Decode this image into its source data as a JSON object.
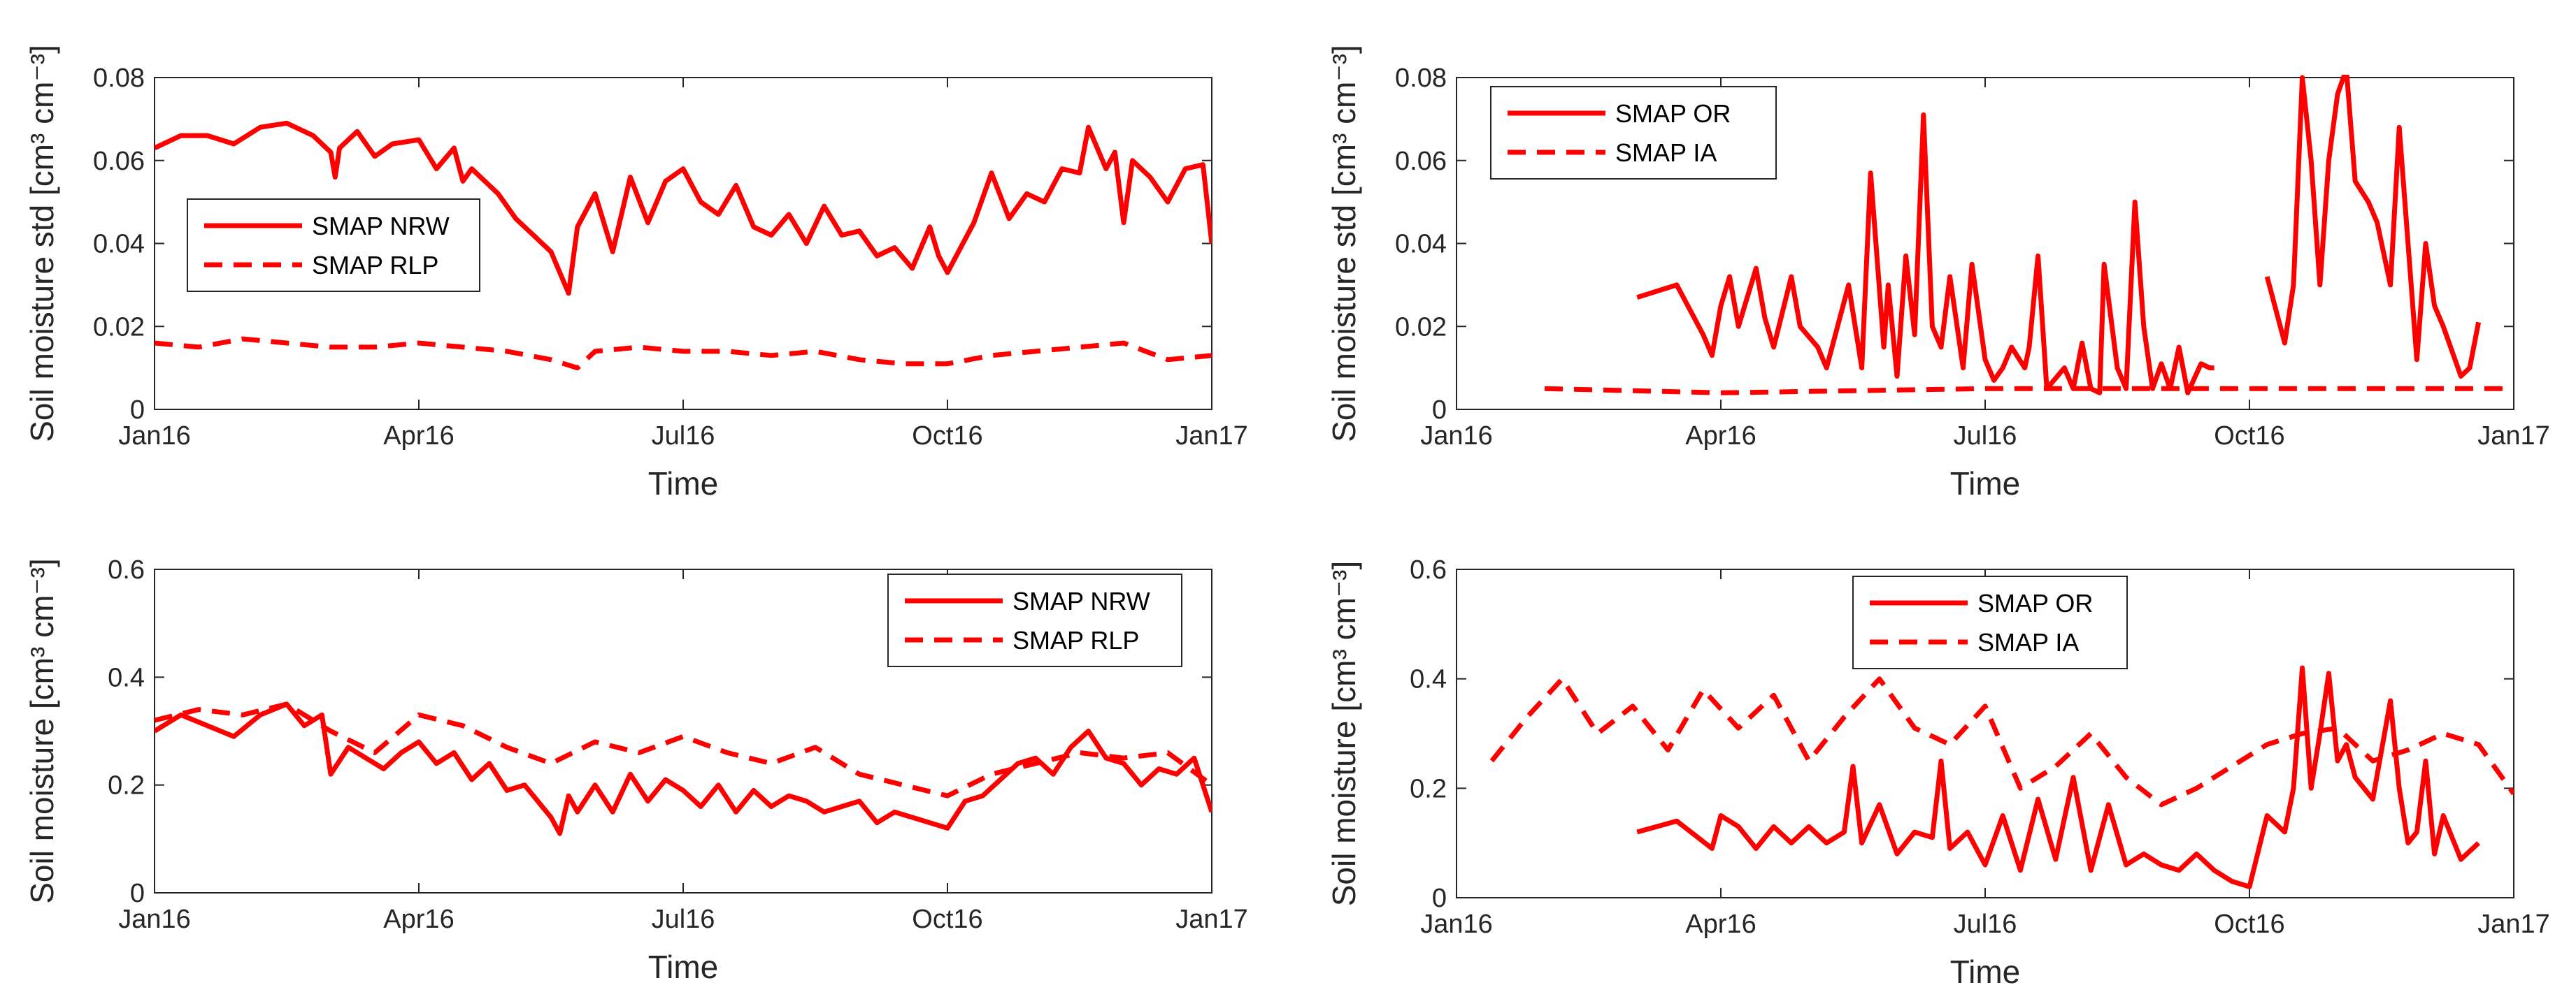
{
  "series_color": "#ff0000",
  "chart_data": [
    {
      "type": "line",
      "xlabel": "Time",
      "ylabel": "Soil moisture std [cm³ cm⁻³]",
      "xlim": [
        0,
        12
      ],
      "ylim": [
        0,
        0.08
      ],
      "xticks": [
        {
          "pos": 0,
          "label": "Jan16"
        },
        {
          "pos": 3,
          "label": "Apr16"
        },
        {
          "pos": 6,
          "label": "Jul16"
        },
        {
          "pos": 9,
          "label": "Oct16"
        },
        {
          "pos": 12,
          "label": "Jan17"
        }
      ],
      "yticks": [
        {
          "pos": 0,
          "label": "0"
        },
        {
          "pos": 0.02,
          "label": "0.02"
        },
        {
          "pos": 0.04,
          "label": "0.04"
        },
        {
          "pos": 0.06,
          "label": "0.06"
        },
        {
          "pos": 0.08,
          "label": "0.08"
        }
      ],
      "legend": {
        "position": "middle-left",
        "entries": [
          "SMAP NRW",
          "SMAP RLP"
        ]
      },
      "series": [
        {
          "name": "SMAP NRW",
          "style": "solid",
          "x": [
            0,
            0.3,
            0.6,
            0.9,
            1.2,
            1.5,
            1.8,
            2.0,
            2.05,
            2.1,
            2.3,
            2.5,
            2.7,
            3.0,
            3.2,
            3.4,
            3.5,
            3.6,
            3.9,
            4.1,
            4.3,
            4.5,
            4.6,
            4.7,
            4.8,
            5.0,
            5.2,
            5.4,
            5.6,
            5.8,
            6.0,
            6.2,
            6.4,
            6.6,
            6.8,
            7.0,
            7.2,
            7.4,
            7.6,
            7.8,
            8.0,
            8.2,
            8.4,
            8.6,
            8.8,
            8.9,
            9.0,
            9.1,
            9.3,
            9.5,
            9.7,
            9.9,
            10.1,
            10.3,
            10.5,
            10.6,
            10.8,
            10.9,
            11.0,
            11.1,
            11.3,
            11.5,
            11.7,
            11.9,
            12.0
          ],
          "y": [
            0.063,
            0.066,
            0.066,
            0.064,
            0.068,
            0.069,
            0.066,
            0.062,
            0.056,
            0.063,
            0.067,
            0.061,
            0.064,
            0.065,
            0.058,
            0.063,
            0.055,
            0.058,
            0.052,
            0.046,
            0.042,
            0.038,
            0.033,
            0.028,
            0.044,
            0.052,
            0.038,
            0.056,
            0.045,
            0.055,
            0.058,
            0.05,
            0.047,
            0.054,
            0.044,
            0.042,
            0.047,
            0.04,
            0.049,
            0.042,
            0.043,
            0.037,
            0.039,
            0.034,
            0.044,
            0.037,
            0.033,
            0.037,
            0.045,
            0.057,
            0.046,
            0.052,
            0.05,
            0.058,
            0.057,
            0.068,
            0.058,
            0.062,
            0.045,
            0.06,
            0.056,
            0.05,
            0.058,
            0.059,
            0.04
          ]
        },
        {
          "name": "SMAP RLP",
          "style": "dashed",
          "x": [
            0,
            0.5,
            1.0,
            1.5,
            2.0,
            2.5,
            3.0,
            3.5,
            4.0,
            4.5,
            4.8,
            5.0,
            5.5,
            6.0,
            6.5,
            7.0,
            7.5,
            8.0,
            8.5,
            9.0,
            9.5,
            10.0,
            10.5,
            11.0,
            11.5,
            12.0
          ],
          "y": [
            0.016,
            0.015,
            0.017,
            0.016,
            0.015,
            0.015,
            0.016,
            0.015,
            0.014,
            0.012,
            0.01,
            0.014,
            0.015,
            0.014,
            0.014,
            0.013,
            0.014,
            0.012,
            0.011,
            0.011,
            0.013,
            0.014,
            0.015,
            0.016,
            0.012,
            0.013
          ]
        }
      ]
    },
    {
      "type": "line",
      "xlabel": "Time",
      "ylabel": "Soil moisture std [cm³ cm⁻³]",
      "xlim": [
        0,
        12
      ],
      "ylim": [
        0,
        0.08
      ],
      "xticks": [
        {
          "pos": 0,
          "label": "Jan16"
        },
        {
          "pos": 3,
          "label": "Apr16"
        },
        {
          "pos": 6,
          "label": "Jul16"
        },
        {
          "pos": 9,
          "label": "Oct16"
        },
        {
          "pos": 12,
          "label": "Jan17"
        }
      ],
      "yticks": [
        {
          "pos": 0,
          "label": "0"
        },
        {
          "pos": 0.02,
          "label": "0.02"
        },
        {
          "pos": 0.04,
          "label": "0.04"
        },
        {
          "pos": 0.06,
          "label": "0.06"
        },
        {
          "pos": 0.08,
          "label": "0.08"
        }
      ],
      "legend": {
        "position": "top-left",
        "entries": [
          "SMAP OR",
          "SMAP IA"
        ]
      },
      "series": [
        {
          "name": "SMAP OR",
          "style": "solid",
          "x": [
            2.05,
            2.5,
            2.8,
            2.9,
            3.0,
            3.1,
            3.2,
            3.4,
            3.5,
            3.6,
            3.8,
            3.9,
            4.1,
            4.2,
            4.35,
            4.45,
            4.6,
            4.7,
            4.85,
            4.9,
            5.0,
            5.1,
            5.2,
            5.3,
            5.4,
            5.5,
            5.6,
            5.75,
            5.85,
            6.0,
            6.1,
            6.2,
            6.3,
            6.45,
            6.5,
            6.6,
            6.7,
            6.9,
            7.0,
            7.1,
            7.2,
            7.3,
            7.35,
            7.5,
            7.6,
            7.7,
            7.8,
            7.9,
            8.0,
            8.1,
            8.2,
            8.3,
            8.45,
            8.55,
            8.6
          ],
          "y": [
            0.027,
            0.03,
            0.018,
            0.013,
            0.025,
            0.032,
            0.02,
            0.034,
            0.022,
            0.015,
            0.032,
            0.02,
            0.015,
            0.01,
            0.022,
            0.03,
            0.01,
            0.057,
            0.015,
            0.03,
            0.008,
            0.037,
            0.018,
            0.071,
            0.02,
            0.015,
            0.032,
            0.01,
            0.035,
            0.012,
            0.007,
            0.01,
            0.015,
            0.01,
            0.015,
            0.037,
            0.005,
            0.01,
            0.005,
            0.016,
            0.005,
            0.004,
            0.035,
            0.01,
            0.005,
            0.05,
            0.02,
            0.005,
            0.011,
            0.005,
            0.015,
            0.004,
            0.011,
            0.01,
            0.01
          ]
        },
        {
          "name": "SMAP OR",
          "style": "solid",
          "x": [
            9.2,
            9.4,
            9.5,
            9.6,
            9.7,
            9.8,
            9.9,
            10.0,
            10.1,
            10.2,
            10.35,
            10.45,
            10.6,
            10.7,
            10.8,
            10.9,
            11.0,
            11.1,
            11.2,
            11.4,
            11.5,
            11.6
          ],
          "y": [
            0.032,
            0.016,
            0.03,
            0.08,
            0.06,
            0.03,
            0.06,
            0.076,
            0.082,
            0.055,
            0.05,
            0.045,
            0.03,
            0.068,
            0.04,
            0.012,
            0.04,
            0.025,
            0.02,
            0.008,
            0.01,
            0.021
          ]
        },
        {
          "name": "SMAP IA",
          "style": "dashed",
          "x": [
            1.0,
            3.0,
            6.0,
            9.0,
            11.0,
            12.0
          ],
          "y": [
            0.005,
            0.004,
            0.005,
            0.005,
            0.005,
            0.005
          ]
        }
      ]
    },
    {
      "type": "line",
      "xlabel": "Time",
      "ylabel": "Soil moisture [cm³ cm⁻³]",
      "xlim": [
        0,
        12
      ],
      "ylim": [
        0,
        0.6
      ],
      "xticks": [
        {
          "pos": 0,
          "label": "Jan16"
        },
        {
          "pos": 3,
          "label": "Apr16"
        },
        {
          "pos": 6,
          "label": "Jul16"
        },
        {
          "pos": 9,
          "label": "Oct16"
        },
        {
          "pos": 12,
          "label": "Jan17"
        }
      ],
      "yticks": [
        {
          "pos": 0,
          "label": "0"
        },
        {
          "pos": 0.2,
          "label": "0.2"
        },
        {
          "pos": 0.4,
          "label": "0.4"
        },
        {
          "pos": 0.6,
          "label": "0.6"
        }
      ],
      "legend": {
        "position": "top-right",
        "entries": [
          "SMAP NRW",
          "SMAP RLP"
        ]
      },
      "series": [
        {
          "name": "SMAP NRW",
          "style": "solid",
          "x": [
            0,
            0.3,
            0.6,
            0.9,
            1.2,
            1.5,
            1.7,
            1.9,
            2.0,
            2.2,
            2.4,
            2.6,
            2.8,
            3.0,
            3.2,
            3.4,
            3.6,
            3.8,
            4.0,
            4.2,
            4.4,
            4.5,
            4.6,
            4.7,
            4.8,
            5.0,
            5.2,
            5.4,
            5.6,
            5.8,
            6.0,
            6.2,
            6.4,
            6.6,
            6.8,
            7.0,
            7.2,
            7.4,
            7.6,
            7.8,
            8.0,
            8.2,
            8.4,
            8.6,
            8.8,
            9.0,
            9.2,
            9.4,
            9.6,
            9.8,
            10.0,
            10.2,
            10.4,
            10.6,
            10.8,
            11.0,
            11.2,
            11.4,
            11.6,
            11.8,
            12.0
          ],
          "y": [
            0.3,
            0.33,
            0.31,
            0.29,
            0.33,
            0.35,
            0.31,
            0.33,
            0.22,
            0.27,
            0.25,
            0.23,
            0.26,
            0.28,
            0.24,
            0.26,
            0.21,
            0.24,
            0.19,
            0.2,
            0.16,
            0.14,
            0.11,
            0.18,
            0.15,
            0.2,
            0.15,
            0.22,
            0.17,
            0.21,
            0.19,
            0.16,
            0.2,
            0.15,
            0.19,
            0.16,
            0.18,
            0.17,
            0.15,
            0.16,
            0.17,
            0.13,
            0.15,
            0.14,
            0.13,
            0.12,
            0.17,
            0.18,
            0.21,
            0.24,
            0.25,
            0.22,
            0.27,
            0.3,
            0.25,
            0.24,
            0.2,
            0.23,
            0.22,
            0.25,
            0.15
          ]
        },
        {
          "name": "SMAP RLP",
          "style": "dashed",
          "x": [
            0,
            0.5,
            1.0,
            1.5,
            2.0,
            2.5,
            3.0,
            3.5,
            4.0,
            4.5,
            5.0,
            5.5,
            6.0,
            6.5,
            7.0,
            7.5,
            8.0,
            8.5,
            9.0,
            9.5,
            10.0,
            10.5,
            11.0,
            11.5,
            12.0
          ],
          "y": [
            0.32,
            0.34,
            0.33,
            0.35,
            0.3,
            0.26,
            0.33,
            0.31,
            0.27,
            0.24,
            0.28,
            0.26,
            0.29,
            0.26,
            0.24,
            0.27,
            0.22,
            0.2,
            0.18,
            0.22,
            0.24,
            0.26,
            0.25,
            0.26,
            0.2
          ]
        }
      ]
    },
    {
      "type": "line",
      "xlabel": "Time",
      "ylabel": "Soil moisture [cm³ cm⁻³]",
      "xlim": [
        0,
        12
      ],
      "ylim": [
        0,
        0.6
      ],
      "xticks": [
        {
          "pos": 0,
          "label": "Jan16"
        },
        {
          "pos": 3,
          "label": "Apr16"
        },
        {
          "pos": 6,
          "label": "Jul16"
        },
        {
          "pos": 9,
          "label": "Oct16"
        },
        {
          "pos": 12,
          "label": "Jan17"
        }
      ],
      "yticks": [
        {
          "pos": 0,
          "label": "0"
        },
        {
          "pos": 0.2,
          "label": "0.2"
        },
        {
          "pos": 0.4,
          "label": "0.4"
        },
        {
          "pos": 0.6,
          "label": "0.6"
        }
      ],
      "legend": {
        "position": "top-center",
        "entries": [
          "SMAP OR",
          "SMAP IA"
        ]
      },
      "series": [
        {
          "name": "SMAP OR",
          "style": "solid",
          "x": [
            2.05,
            2.5,
            2.9,
            3.0,
            3.2,
            3.4,
            3.6,
            3.8,
            4.0,
            4.2,
            4.4,
            4.5,
            4.6,
            4.8,
            5.0,
            5.2,
            5.4,
            5.5,
            5.6,
            5.8,
            6.0,
            6.2,
            6.4,
            6.6,
            6.8,
            7.0,
            7.2,
            7.4,
            7.6,
            7.8,
            8.0,
            8.2,
            8.4,
            8.6,
            8.8,
            9.0,
            9.2,
            9.4,
            9.5,
            9.6,
            9.7,
            9.8,
            9.9,
            10.0,
            10.1,
            10.2,
            10.4,
            10.6,
            10.7,
            10.8,
            10.9,
            11.0,
            11.1,
            11.2,
            11.4,
            11.6
          ],
          "y": [
            0.12,
            0.14,
            0.09,
            0.15,
            0.13,
            0.09,
            0.13,
            0.1,
            0.13,
            0.1,
            0.12,
            0.24,
            0.1,
            0.17,
            0.08,
            0.12,
            0.11,
            0.25,
            0.09,
            0.12,
            0.06,
            0.15,
            0.05,
            0.18,
            0.07,
            0.22,
            0.05,
            0.17,
            0.06,
            0.08,
            0.06,
            0.05,
            0.08,
            0.05,
            0.03,
            0.02,
            0.15,
            0.12,
            0.2,
            0.42,
            0.2,
            0.3,
            0.41,
            0.25,
            0.28,
            0.22,
            0.18,
            0.36,
            0.2,
            0.1,
            0.12,
            0.25,
            0.08,
            0.15,
            0.07,
            0.1
          ]
        },
        {
          "name": "SMAP IA",
          "style": "dashed",
          "x": [
            0.4,
            0.8,
            1.2,
            1.6,
            2.0,
            2.4,
            2.8,
            3.2,
            3.6,
            4.0,
            4.4,
            4.8,
            5.2,
            5.6,
            6.0,
            6.4,
            6.8,
            7.2,
            7.6,
            8.0,
            8.4,
            8.8,
            9.2,
            9.6,
            10.0,
            10.4,
            10.8,
            11.2,
            11.6,
            12.0
          ],
          "y": [
            0.25,
            0.33,
            0.4,
            0.3,
            0.35,
            0.27,
            0.38,
            0.31,
            0.37,
            0.25,
            0.33,
            0.4,
            0.31,
            0.28,
            0.35,
            0.2,
            0.24,
            0.3,
            0.22,
            0.17,
            0.2,
            0.24,
            0.28,
            0.3,
            0.31,
            0.25,
            0.27,
            0.3,
            0.28,
            0.19
          ]
        }
      ]
    }
  ]
}
